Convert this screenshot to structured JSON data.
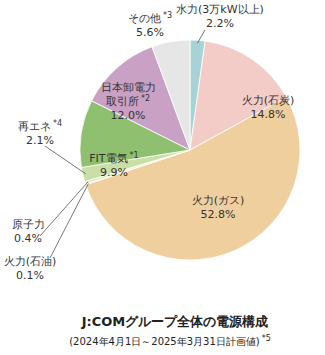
{
  "chart_data": {
    "type": "pie",
    "title": "J:COMグループ全体の電源構成",
    "subtitle": "(2024年4月1日～2025年3月31日計画値) *5",
    "categories": [
      "水力(3万kW以上)",
      "火力(石炭)",
      "火力(ガス)",
      "火力(石油)",
      "原子力",
      "再エネ *4",
      "FIT電気 *1",
      "日本卸電力取引所 *2",
      "その他 *3"
    ],
    "values": [
      2.2,
      14.8,
      52.8,
      0.1,
      0.4,
      2.1,
      9.9,
      12.0,
      5.6
    ],
    "value_labels": [
      "2.2%",
      "14.8%",
      "52.8%",
      "0.1%",
      "0.4%",
      "2.1%",
      "9.9%",
      "12.0%",
      "5.6%"
    ],
    "colors": [
      "#a8d3d6",
      "#f3cbc7",
      "#f0cf9f",
      "#d98784",
      "#e4e9b8",
      "#c9dfa6",
      "#8fc070",
      "#c9a1c4",
      "#e6e6e6"
    ],
    "data_labels": true
  }
}
